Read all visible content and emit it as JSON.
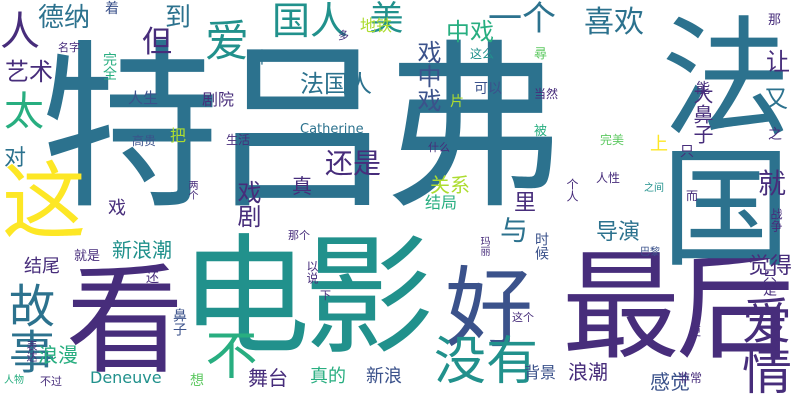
{
  "colors": {
    "background": "#ffffff",
    "palette": [
      "#440154",
      "#472d7b",
      "#3b528b",
      "#2c728e",
      "#21918c",
      "#28ae80",
      "#5ec962",
      "#addc30",
      "#fde725"
    ]
  },
  "words": [
    {
      "text": "特吕弗"
    },
    {
      "text": "电影"
    },
    {
      "text": "最后"
    },
    {
      "text": "看"
    },
    {
      "text": "好"
    },
    {
      "text": "法国"
    },
    {
      "text": "这"
    },
    {
      "text": "故事"
    },
    {
      "text": "爱情"
    },
    {
      "text": "没有"
    },
    {
      "text": "不"
    },
    {
      "text": "国人"
    },
    {
      "text": "爱"
    },
    {
      "text": "人"
    },
    {
      "text": "德纳"
    },
    {
      "text": "但"
    },
    {
      "text": "到"
    },
    {
      "text": "美"
    },
    {
      "text": "一个"
    },
    {
      "text": "喜欢"
    },
    {
      "text": "中戏"
    },
    {
      "text": "让"
    },
    {
      "text": "又"
    },
    {
      "text": "法国人"
    },
    {
      "text": "戏中戏"
    },
    {
      "text": "还是"
    },
    {
      "text": "太"
    },
    {
      "text": "艺术"
    },
    {
      "text": "对"
    },
    {
      "text": "人生"
    },
    {
      "text": "剧院"
    },
    {
      "text": "戏剧"
    },
    {
      "text": "关系"
    },
    {
      "text": "结局"
    },
    {
      "text": "导演"
    },
    {
      "text": "就"
    },
    {
      "text": "上"
    },
    {
      "text": "真"
    },
    {
      "text": "与"
    },
    {
      "text": "里"
    },
    {
      "text": "新浪潮"
    },
    {
      "text": "结尾"
    },
    {
      "text": "舞台"
    },
    {
      "text": "真的"
    },
    {
      "text": "新浪"
    },
    {
      "text": "浪潮"
    },
    {
      "text": "背景"
    },
    {
      "text": "感觉"
    },
    {
      "text": "觉得"
    },
    {
      "text": "浪漫"
    },
    {
      "text": "Deneuve"
    },
    {
      "text": "Catherine"
    },
    {
      "text": "地铁"
    },
    {
      "text": "鼻子"
    },
    {
      "text": "大鼻子"
    },
    {
      "text": "可以"
    },
    {
      "text": "当然"
    },
    {
      "text": "能"
    },
    {
      "text": "多"
    },
    {
      "text": "这么"
    },
    {
      "text": "尋"
    },
    {
      "text": "那"
    },
    {
      "text": "完全"
    },
    {
      "text": "名字"
    },
    {
      "text": "着"
    },
    {
      "text": "中"
    },
    {
      "text": "片"
    },
    {
      "text": "高贵"
    },
    {
      "text": "把"
    },
    {
      "text": "生活"
    },
    {
      "text": "被"
    },
    {
      "text": "完美"
    },
    {
      "text": "只"
    },
    {
      "text": "之"
    },
    {
      "text": "人性"
    },
    {
      "text": "之间"
    },
    {
      "text": "而"
    },
    {
      "text": "什么"
    },
    {
      "text": "个人"
    },
    {
      "text": "两个"
    },
    {
      "text": "时候"
    },
    {
      "text": "巴黎"
    },
    {
      "text": "战争"
    },
    {
      "text": "那个"
    },
    {
      "text": "就是"
    },
    {
      "text": "还"
    },
    {
      "text": "以说"
    },
    {
      "text": "下"
    },
    {
      "text": "表达"
    },
    {
      "text": "这个"
    },
    {
      "text": "更"
    },
    {
      "text": "只是"
    },
    {
      "text": "人物"
    },
    {
      "text": "不过"
    },
    {
      "text": "想"
    },
    {
      "text": "非常"
    },
    {
      "text": "戏"
    },
    {
      "text": "玛丽"
    }
  ]
}
